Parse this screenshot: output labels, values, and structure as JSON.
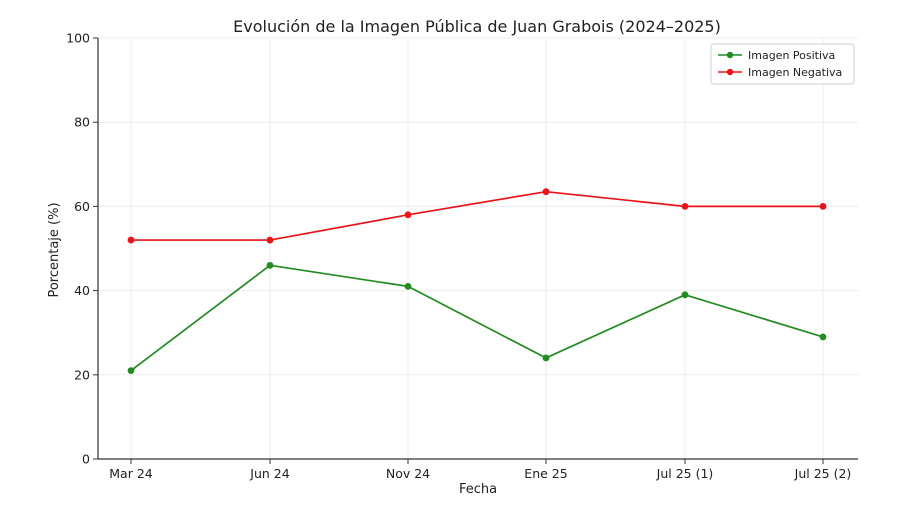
{
  "chart_data": {
    "type": "line",
    "title": "Evolución de la Imagen Pública de Juan Grabois (2024–2025)",
    "xlabel": "Fecha",
    "ylabel": "Porcentaje (%)",
    "categories": [
      "Mar 24",
      "Jun 24",
      "Nov 24",
      "Ene 25",
      "Jul 25 (1)",
      "Jul 25 (2)"
    ],
    "ylim": [
      0,
      100
    ],
    "yticks": [
      "0",
      "20",
      "40",
      "60",
      "80",
      "100"
    ],
    "yticks_values": [
      0,
      20,
      40,
      60,
      80,
      100
    ],
    "grid": true,
    "legend_position": "top-right",
    "series": [
      {
        "name": "Imagen Positiva",
        "color": "#228B22",
        "values": [
          21,
          46,
          41,
          24,
          39,
          29
        ]
      },
      {
        "name": "Imagen Negativa",
        "color": "#E8141B",
        "values": [
          52,
          52,
          58,
          63.5,
          60,
          60
        ]
      }
    ]
  }
}
